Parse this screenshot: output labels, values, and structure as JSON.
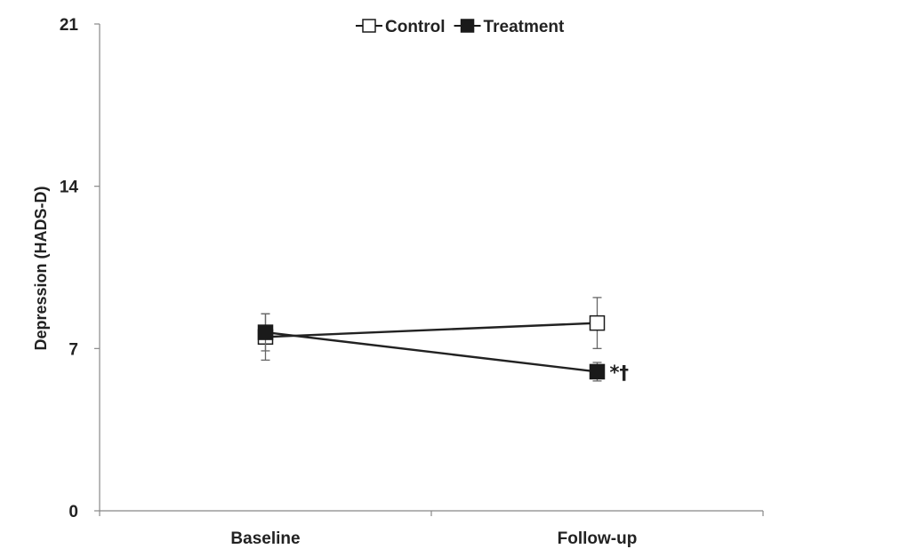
{
  "chart_data": {
    "type": "line",
    "categories": [
      "Baseline",
      "Follow-up"
    ],
    "ylabel": "Depression (HADS-D)",
    "xlabel": "",
    "ylim": [
      0,
      21
    ],
    "yticks": [
      "0",
      "7",
      "14",
      "21"
    ],
    "grid": false,
    "legend_position": "top-center",
    "series": [
      {
        "name": "Control",
        "values": [
          7.5,
          8.1
        ],
        "error": [
          1.0,
          1.1
        ],
        "marker": "open-square",
        "color": "#222222"
      },
      {
        "name": "Treatment",
        "values": [
          7.7,
          6.0
        ],
        "error": [
          0.8,
          0.4
        ],
        "marker": "filled-square",
        "color": "#222222"
      }
    ],
    "annotations": [
      {
        "text": "*†",
        "series": "Treatment",
        "category": "Follow-up"
      }
    ]
  }
}
